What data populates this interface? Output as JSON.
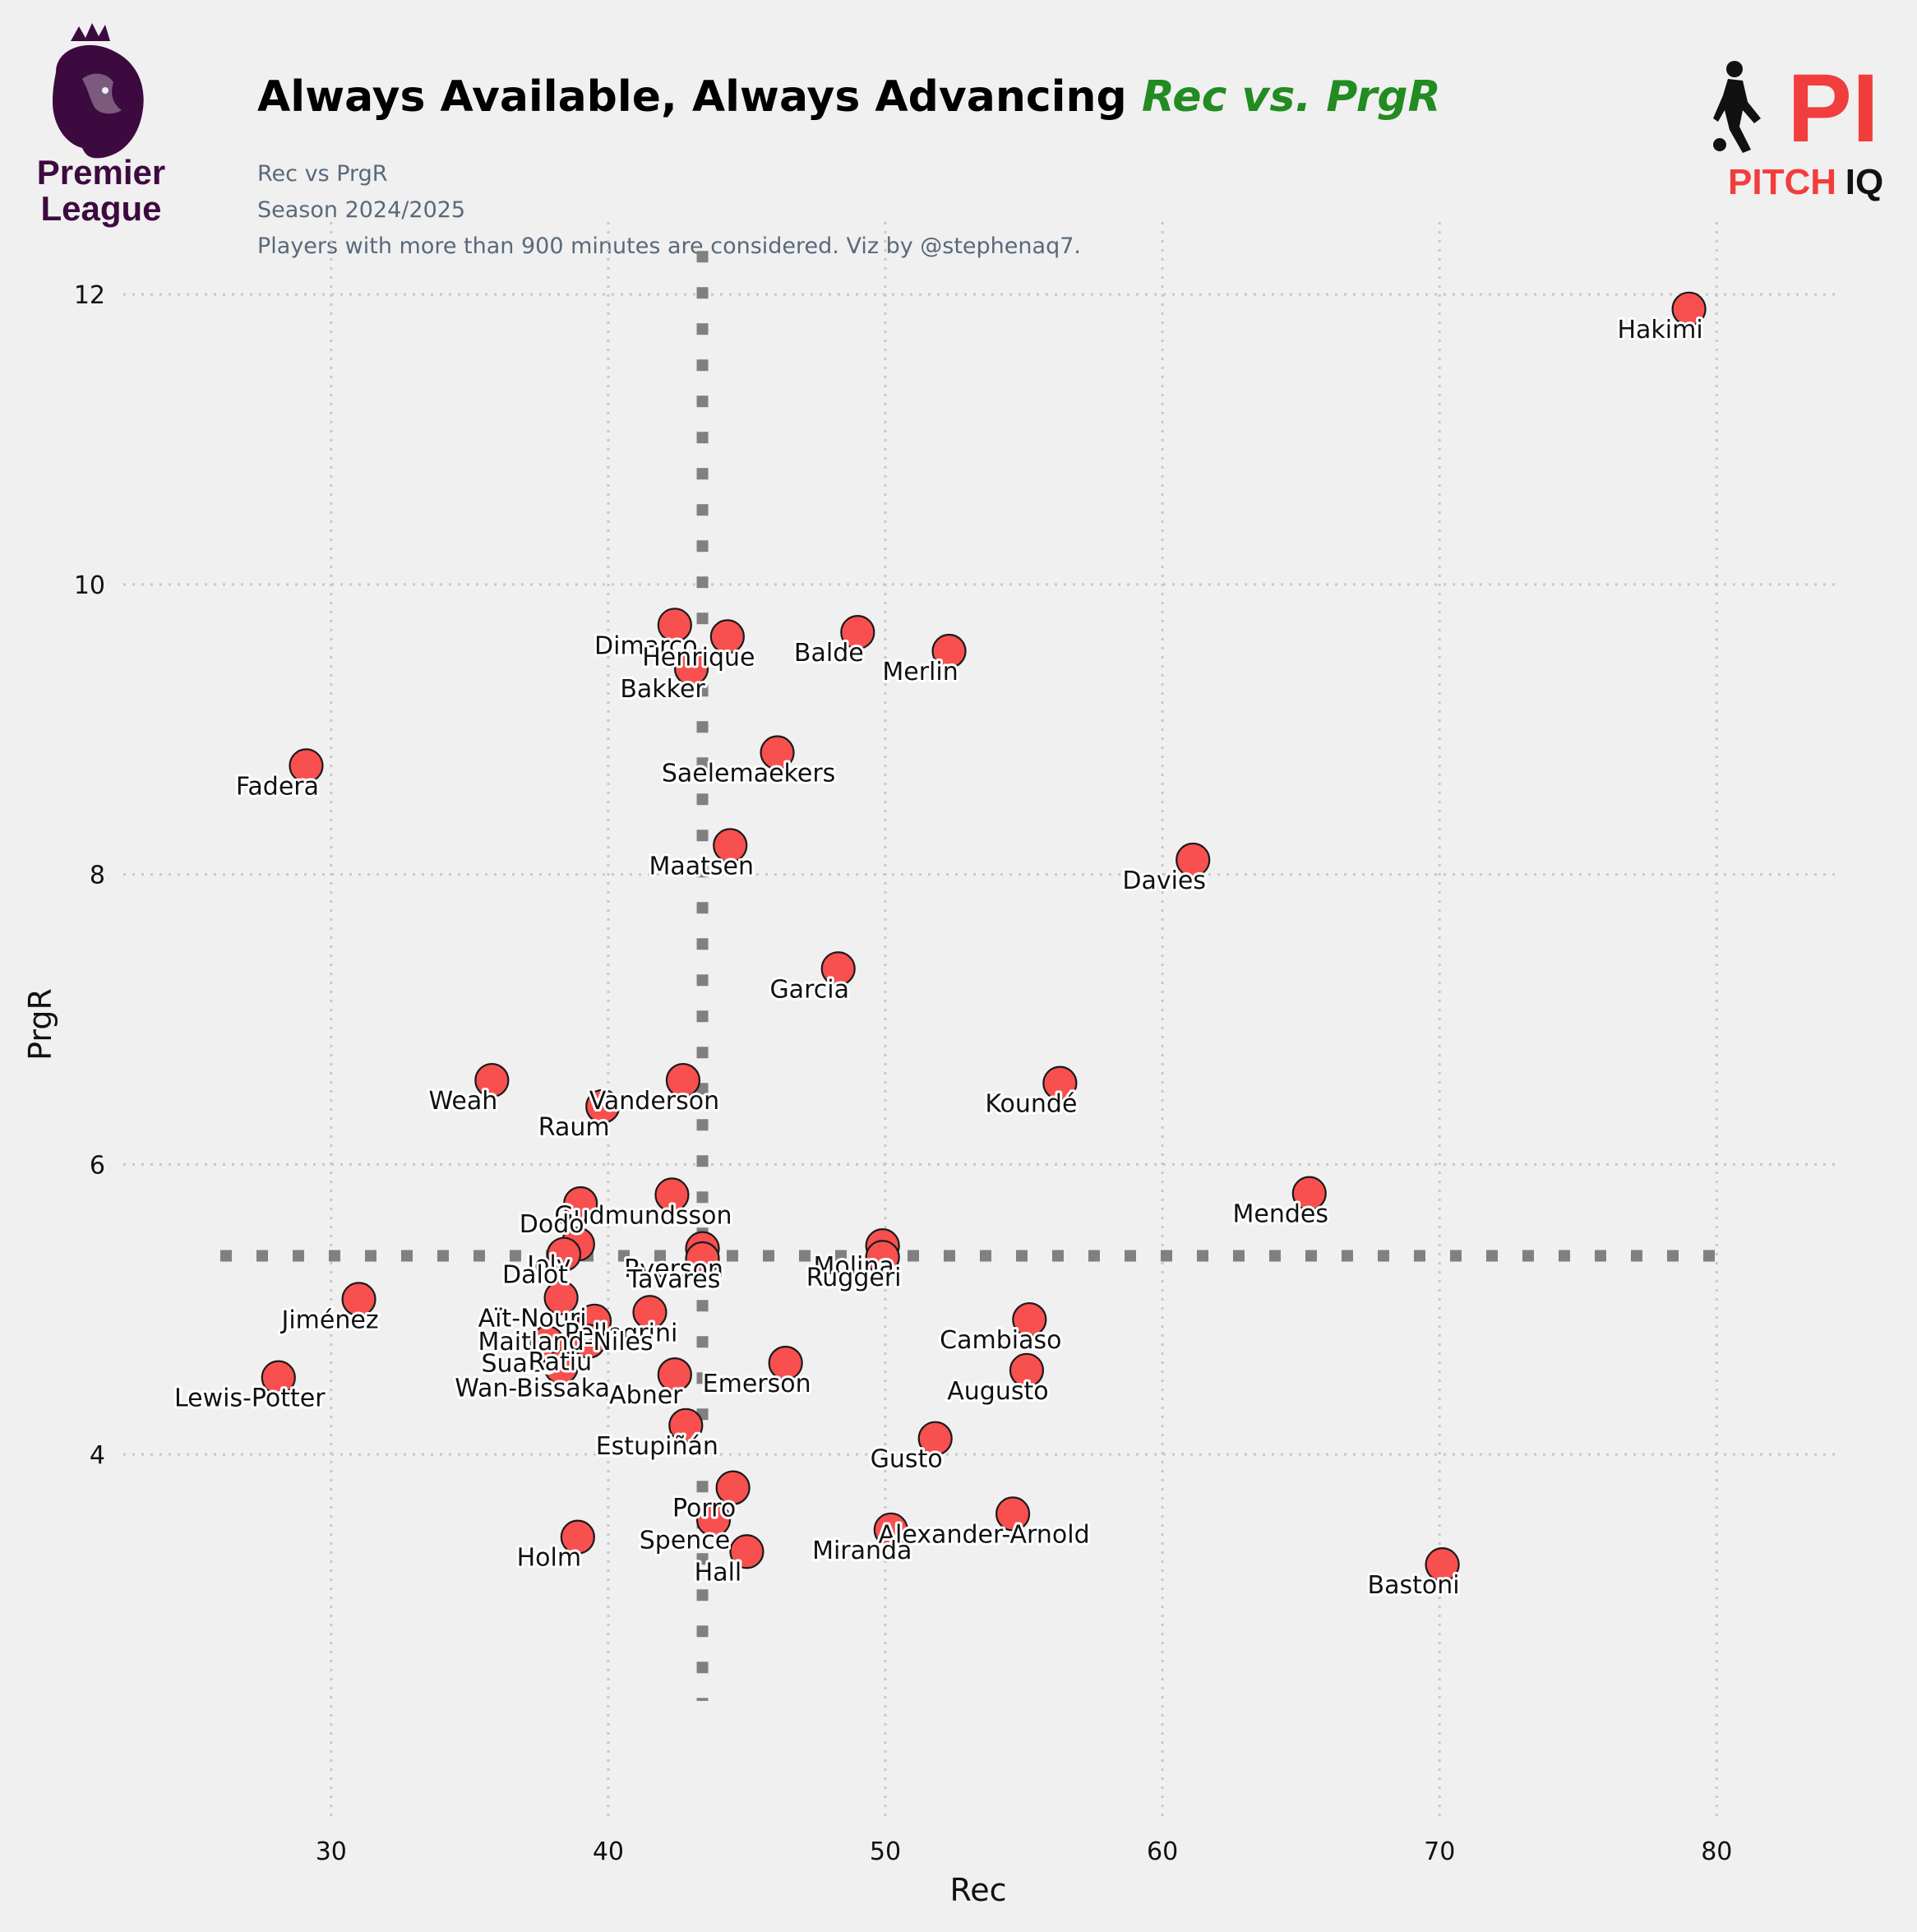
{
  "header": {
    "title": "Always Available, Always Advancing",
    "title_accent": "Rec vs. PrgR",
    "subtitle_1": "Rec vs PrgR",
    "subtitle_2": "Season 2024/2025",
    "subtitle_3": "Players with more than 900 minutes are considered. Viz by @stephenaq7."
  },
  "logos": {
    "left": {
      "line1": "Premier",
      "line2": "League",
      "icon": "lion-crest-icon",
      "color": "#3d0a40"
    },
    "right": {
      "mark": "PI",
      "word1": "PITCH",
      "word2": "IQ",
      "icon": "footballer-silhouette-icon",
      "color": "#f23d3d"
    }
  },
  "chart_data": {
    "type": "scatter",
    "xlabel": "Rec",
    "ylabel": "PrgR",
    "xlim": [
      22.5,
      84.5
    ],
    "ylim": [
      1.5,
      12.5
    ],
    "xticks": [
      30,
      40,
      50,
      60,
      70,
      80
    ],
    "yticks": [
      4,
      6,
      8,
      10,
      12
    ],
    "grid": true,
    "marker_color": "#f84f4f",
    "marker_edge_color": "#1a1a1a",
    "reference_lines": {
      "x": 43.4,
      "y": 5.37,
      "color": "#808080"
    },
    "points": [
      {
        "label": "Hakimi",
        "x": 79.0,
        "y": 11.9
      },
      {
        "label": "Dimarco",
        "x": 42.4,
        "y": 9.72
      },
      {
        "label": "Henrique",
        "x": 44.3,
        "y": 9.64
      },
      {
        "label": "Balde",
        "x": 49.0,
        "y": 9.67
      },
      {
        "label": "Merlin",
        "x": 52.3,
        "y": 9.54
      },
      {
        "label": "Bakker",
        "x": 43.0,
        "y": 9.42
      },
      {
        "label": "Saelemaekers",
        "x": 46.1,
        "y": 8.84
      },
      {
        "label": "Fadera",
        "x": 29.1,
        "y": 8.75
      },
      {
        "label": "Maatsen",
        "x": 44.4,
        "y": 8.2
      },
      {
        "label": "Davies",
        "x": 61.1,
        "y": 8.1
      },
      {
        "label": "Garcia",
        "x": 48.3,
        "y": 7.35
      },
      {
        "label": "Weah",
        "x": 35.8,
        "y": 6.58
      },
      {
        "label": "Vanderson",
        "x": 42.7,
        "y": 6.58
      },
      {
        "label": "Koundé",
        "x": 56.3,
        "y": 6.56
      },
      {
        "label": "Raum",
        "x": 39.8,
        "y": 6.4
      },
      {
        "label": "Mendes",
        "x": 65.3,
        "y": 5.8
      },
      {
        "label": "Gudmundsson",
        "x": 42.3,
        "y": 5.79
      },
      {
        "label": "Dodo",
        "x": 39.0,
        "y": 5.73
      },
      {
        "label": "Molina",
        "x": 49.9,
        "y": 5.44
      },
      {
        "label": "Ruggeri",
        "x": 49.9,
        "y": 5.36
      },
      {
        "label": "Joly",
        "x": 38.9,
        "y": 5.45
      },
      {
        "label": "Ryerson",
        "x": 43.4,
        "y": 5.42
      },
      {
        "label": "Tavares",
        "x": 43.4,
        "y": 5.35
      },
      {
        "label": "Dalot",
        "x": 38.4,
        "y": 5.38
      },
      {
        "label": "Jiménez",
        "x": 31.0,
        "y": 5.07
      },
      {
        "label": "Aït-Nouri",
        "x": 38.3,
        "y": 5.08
      },
      {
        "label": "Pellegrini",
        "x": 41.5,
        "y": 4.98
      },
      {
        "label": "Maitland-Niles",
        "x": 39.5,
        "y": 4.92
      },
      {
        "label": "Cambiaso",
        "x": 55.2,
        "y": 4.93
      },
      {
        "label": "Suazo",
        "x": 37.8,
        "y": 4.77
      },
      {
        "label": "Ratiu",
        "x": 39.3,
        "y": 4.78
      },
      {
        "label": "Wan-Bissaka",
        "x": 38.3,
        "y": 4.6
      },
      {
        "label": "Emerson",
        "x": 46.4,
        "y": 4.63
      },
      {
        "label": "Augusto",
        "x": 55.1,
        "y": 4.58
      },
      {
        "label": "Abner",
        "x": 42.4,
        "y": 4.55
      },
      {
        "label": "Lewis-Potter",
        "x": 28.1,
        "y": 4.53
      },
      {
        "label": "Estupiñán",
        "x": 42.8,
        "y": 4.2
      },
      {
        "label": "Gusto",
        "x": 51.8,
        "y": 4.11
      },
      {
        "label": "Porro",
        "x": 44.5,
        "y": 3.77
      },
      {
        "label": "Alexander-Arnold",
        "x": 54.6,
        "y": 3.59
      },
      {
        "label": "Spence",
        "x": 43.8,
        "y": 3.55
      },
      {
        "label": "Holm",
        "x": 38.9,
        "y": 3.43
      },
      {
        "label": "Miranda",
        "x": 50.2,
        "y": 3.48
      },
      {
        "label": "Hall",
        "x": 45.0,
        "y": 3.33
      },
      {
        "label": "Bastoni",
        "x": 70.1,
        "y": 3.24
      }
    ]
  }
}
